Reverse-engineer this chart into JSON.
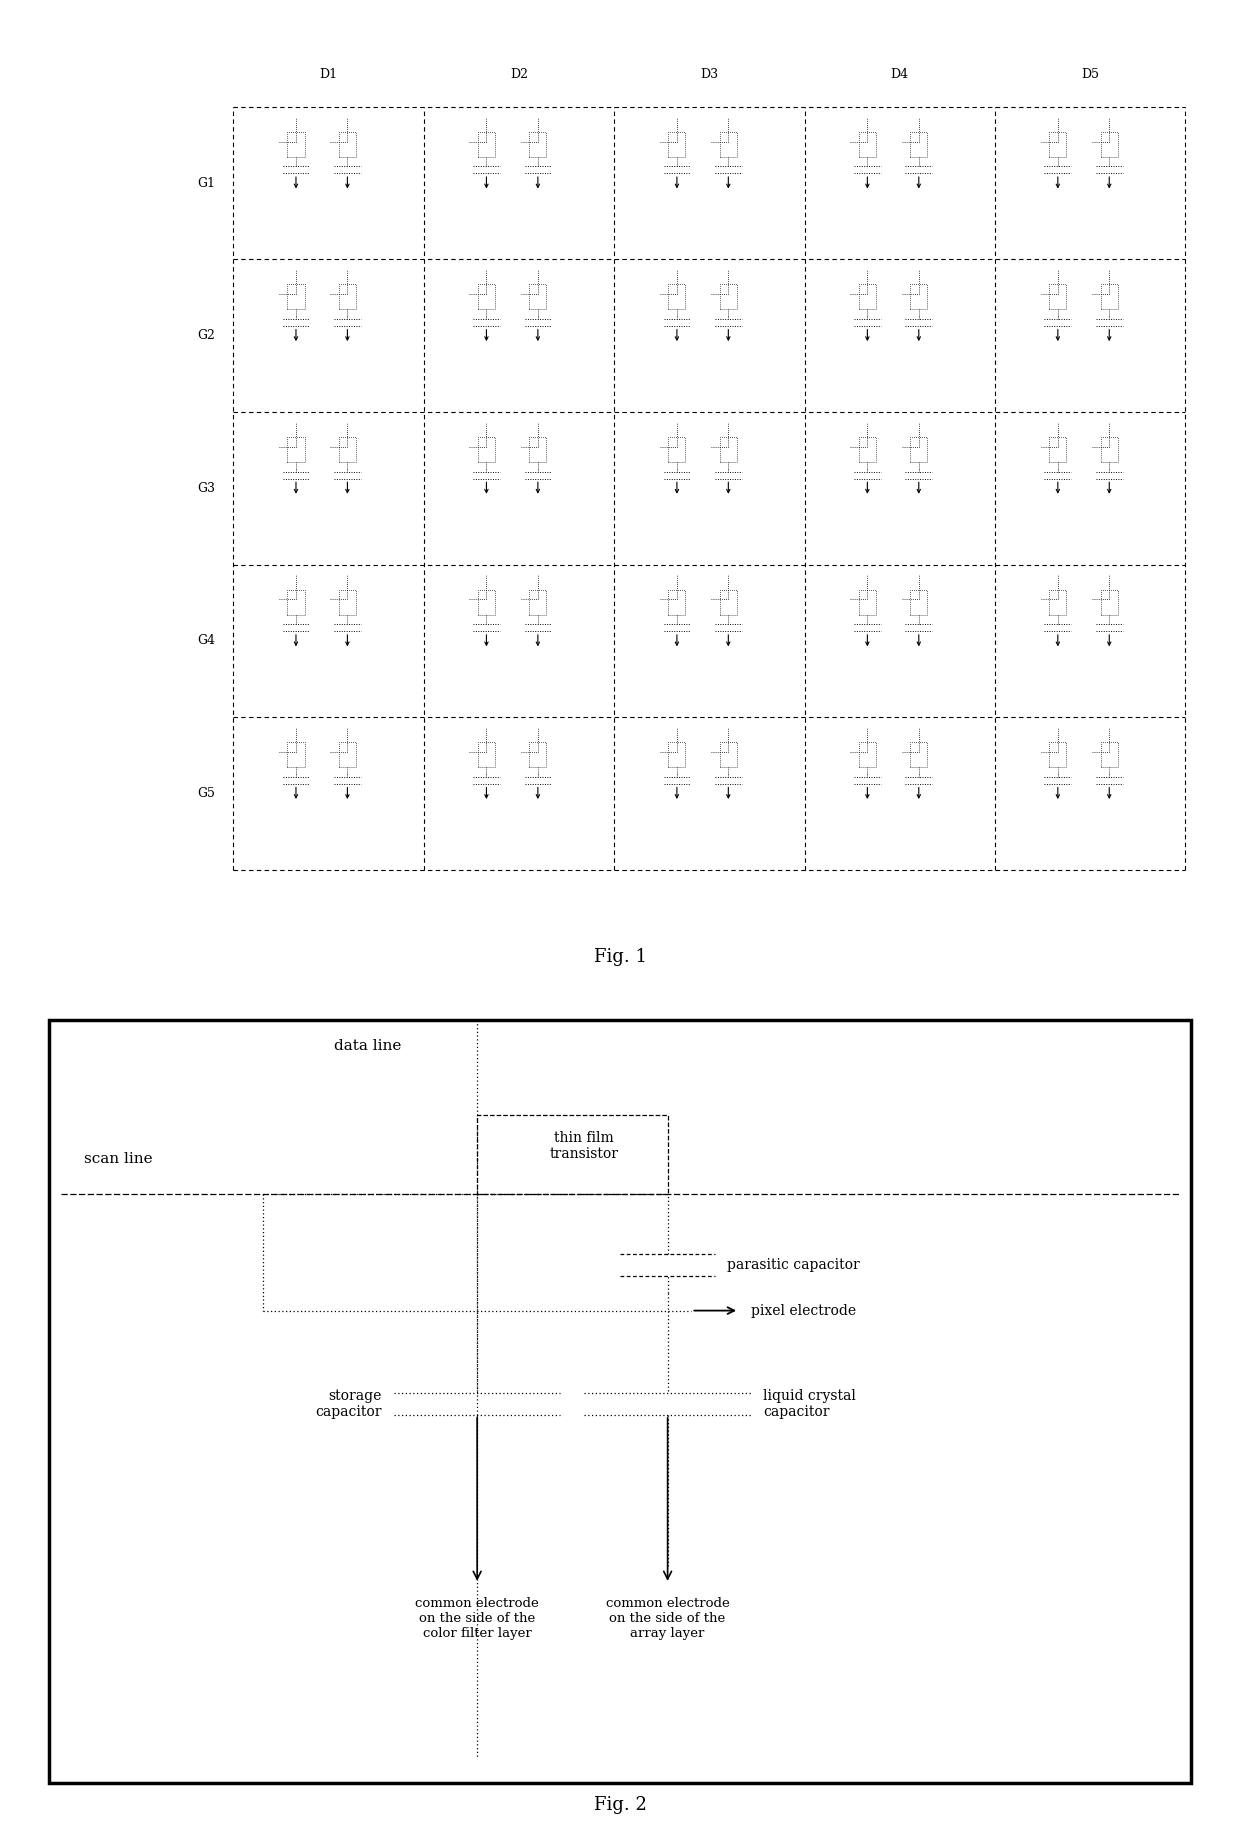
{
  "fig1": {
    "title": "Fig. 1",
    "rows": 5,
    "cols": 5,
    "row_labels": [
      "G1",
      "G2",
      "G3",
      "G4",
      "G5"
    ],
    "col_labels": [
      "D1",
      "D2",
      "D3",
      "D4",
      "D5"
    ],
    "gx0": 0.175,
    "gx1": 0.975,
    "gy0": 0.05,
    "gy1": 0.93
  },
  "fig2": {
    "title": "Fig. 2",
    "data_line_label": "data line",
    "scan_line_label": "scan line",
    "tft_label": "thin film\ntransistor",
    "parasitic_cap_label": "parasitic capacitor",
    "pixel_electrode_label": "pixel electrode",
    "storage_cap_label": "storage\ncapacitor",
    "lc_cap_label": "liquid crystal\ncapacitor",
    "common_cf_label": "common electrode\non the side of the\ncolor filter layer",
    "common_array_label": "common electrode\non the side of the\narray layer"
  }
}
